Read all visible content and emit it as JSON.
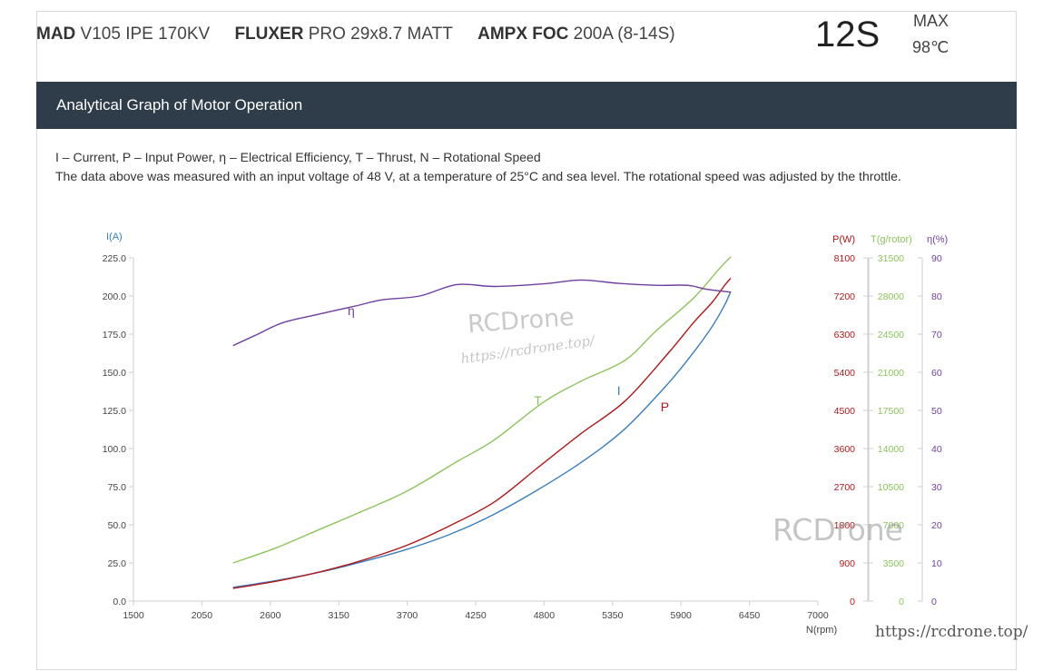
{
  "header": {
    "motor_brand": "MAD",
    "motor_model": " V105 IPE 170KV",
    "prop_brand": "FLUXER",
    "prop_model": " PRO 29x8.7 MATT",
    "esc_brand": "AMPX FOC",
    "esc_model": " 200A (8-14S)",
    "cells": "12S",
    "max_label": "MAX",
    "max_temp": "98℃"
  },
  "section_title": "Analytical Graph of Motor Operation",
  "legend_text": "I – Current, P – Input Power, η – Electrical Efficiency, T – Thrust,   N – Rotational Speed",
  "note_text": "The data above was measured with an input voltage of 48 V, at a temperature of 25°C and sea level. The rotational speed was adjusted by the throttle.",
  "watermarks": {
    "brand": "RCDrone",
    "url": "https://rcdrone.top/",
    "footer_url": "https://rcdrone.top/"
  },
  "colors": {
    "current": "#3a7fbf",
    "power": "#b01818",
    "thrust": "#8cc45a",
    "efficiency": "#6f3ea0",
    "band": "#2f3c4a"
  },
  "chart_data": {
    "type": "line",
    "xlabel": "N(rpm)",
    "xlim": [
      1500,
      7000
    ],
    "x_ticks": [
      1500,
      2050,
      2600,
      3150,
      3700,
      4250,
      4800,
      5350,
      5900,
      6450,
      7000
    ],
    "grid": false,
    "axes": [
      {
        "id": "I",
        "label": "I(A)",
        "side": "left",
        "range": [
          0,
          225
        ],
        "ticks": [
          "0.0",
          "25.0",
          "50.0",
          "75.0",
          "100.0",
          "125.0",
          "150.0",
          "175.0",
          "200.0",
          "225.0"
        ],
        "color": "#3a7fbf"
      },
      {
        "id": "P",
        "label": "P(W)",
        "side": "right",
        "range": [
          0,
          8100
        ],
        "ticks": [
          "0",
          "900",
          "1800",
          "2700",
          "3600",
          "4500",
          "5400",
          "6300",
          "7200",
          "8100"
        ],
        "color": "#b01818"
      },
      {
        "id": "T",
        "label": "T(g/rotor)",
        "side": "right",
        "range": [
          0,
          31500
        ],
        "ticks": [
          "0",
          "3500",
          "7000",
          "10500",
          "14000",
          "17500",
          "21000",
          "24500",
          "28000",
          "31500"
        ],
        "color": "#8cc45a"
      },
      {
        "id": "E",
        "label": "η(%)",
        "side": "right",
        "range": [
          0,
          90
        ],
        "ticks": [
          "0",
          "10",
          "20",
          "30",
          "40",
          "50",
          "60",
          "70",
          "80",
          "90"
        ],
        "color": "#6f3ea0"
      }
    ],
    "series": [
      {
        "name": "I",
        "axis": "I",
        "label_at": [
          5400,
          135
        ],
        "x": [
          2300,
          2650,
          3000,
          3350,
          3700,
          4050,
          4400,
          4750,
          5100,
          5450,
          5800,
          6000,
          6150,
          6250,
          6300
        ],
        "values": [
          9,
          13.5,
          19,
          26,
          34,
          44,
          57,
          73,
          91,
          113,
          143,
          163,
          180,
          194,
          203
        ]
      },
      {
        "name": "P",
        "axis": "P",
        "label_at": [
          5770,
          4480
        ],
        "x": [
          2300,
          2650,
          3000,
          3350,
          3700,
          4050,
          4400,
          4750,
          5100,
          5450,
          5800,
          6000,
          6150,
          6250,
          6300
        ],
        "values": [
          300,
          470,
          690,
          970,
          1320,
          1790,
          2340,
          3150,
          3960,
          4720,
          5860,
          6570,
          7050,
          7450,
          7620
        ]
      },
      {
        "name": "T",
        "axis": "T",
        "label_at": [
          4750,
          18000
        ],
        "x": [
          2300,
          2650,
          3000,
          3350,
          3700,
          4100,
          4400,
          4800,
          5100,
          5450,
          5700,
          6000,
          6200,
          6300
        ],
        "values": [
          3500,
          4900,
          6600,
          8300,
          10100,
          12800,
          14800,
          18300,
          20200,
          22100,
          24800,
          27800,
          30400,
          31600
        ]
      },
      {
        "name": "η",
        "axis": "E",
        "label_at": [
          3250,
          75
        ],
        "x": [
          2300,
          2500,
          2700,
          3000,
          3300,
          3500,
          3800,
          4100,
          4400,
          4800,
          5100,
          5400,
          5700,
          5950,
          6100,
          6300
        ],
        "values": [
          67,
          70,
          73,
          75.3,
          77.5,
          79,
          80,
          83,
          82.5,
          83.2,
          84.2,
          83.3,
          82.8,
          82.8,
          81.8,
          81
        ]
      }
    ]
  }
}
